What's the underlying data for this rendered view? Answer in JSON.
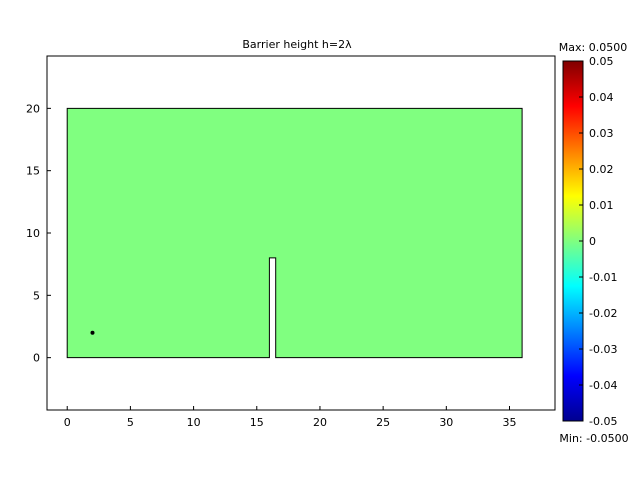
{
  "chart_data": {
    "type": "heatmap",
    "title": "Barrier height h=2λ",
    "xlabel": "",
    "ylabel": "",
    "xlim": [
      -1.6,
      38.6
    ],
    "ylim": [
      -4.2,
      24.2
    ],
    "x_ticks": [
      0,
      5,
      10,
      15,
      20,
      25,
      30,
      35
    ],
    "y_ticks": [
      0,
      5,
      10,
      15,
      20
    ],
    "grid": false,
    "domain_fill_color": "#80ff80",
    "field_value": 0,
    "geometry": {
      "outline_polygon": [
        [
          0,
          0
        ],
        [
          16,
          0
        ],
        [
          16,
          8
        ],
        [
          16.5,
          8
        ],
        [
          16.5,
          0
        ],
        [
          36,
          0
        ],
        [
          36,
          20
        ],
        [
          0,
          20
        ]
      ],
      "point": [
        2,
        2
      ]
    },
    "colorbar": {
      "max_label": "Max: 0.0500",
      "min_label": "Min: -0.0500",
      "min": -0.05,
      "max": 0.05,
      "ticks": [
        "0.05",
        "0.04",
        "0.03",
        "0.02",
        "0.01",
        "0",
        "-0.01",
        "-0.02",
        "-0.03",
        "-0.04",
        "-0.05"
      ],
      "colormap": [
        "#00008f",
        "#0000ff",
        "#0080ff",
        "#00ffff",
        "#80ff80",
        "#ffff00",
        "#ff8000",
        "#ff0000",
        "#800000"
      ]
    }
  }
}
